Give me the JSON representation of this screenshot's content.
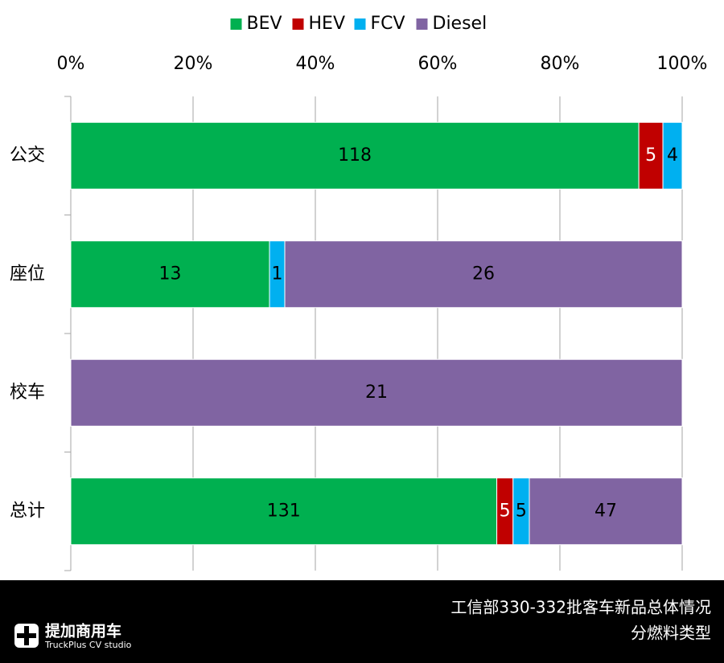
{
  "chart_data": {
    "type": "bar",
    "orientation": "horizontal",
    "stacking": "percent",
    "categories": [
      "公交",
      "座位",
      "校车",
      "总计"
    ],
    "series": [
      {
        "name": "BEV",
        "color": "#00b050",
        "label_color": "#000000",
        "values": [
          118,
          13,
          null,
          131
        ]
      },
      {
        "name": "HEV",
        "color": "#c00000",
        "label_color": "#ffffff",
        "values": [
          5,
          null,
          null,
          5
        ]
      },
      {
        "name": "FCV",
        "color": "#00b0f0",
        "label_color": "#000000",
        "values": [
          4,
          1,
          null,
          5
        ]
      },
      {
        "name": "Diesel",
        "color": "#8064a2",
        "label_color": "#000000",
        "values": [
          null,
          26,
          21,
          47
        ]
      }
    ],
    "xlim": [
      0,
      100
    ],
    "xticks": [
      {
        "value": 0,
        "label": "0%"
      },
      {
        "value": 20,
        "label": "20%"
      },
      {
        "value": 40,
        "label": "40%"
      },
      {
        "value": 60,
        "label": "60%"
      },
      {
        "value": 80,
        "label": "80%"
      },
      {
        "value": 100,
        "label": "100%"
      }
    ],
    "grid": true,
    "legend": "top"
  },
  "footer": {
    "logo": "提加商用车",
    "logo_sub": "TruckPlus CV studio",
    "caption": [
      "工信部330-332批客车新品总体情况",
      "分燃料类型"
    ]
  }
}
